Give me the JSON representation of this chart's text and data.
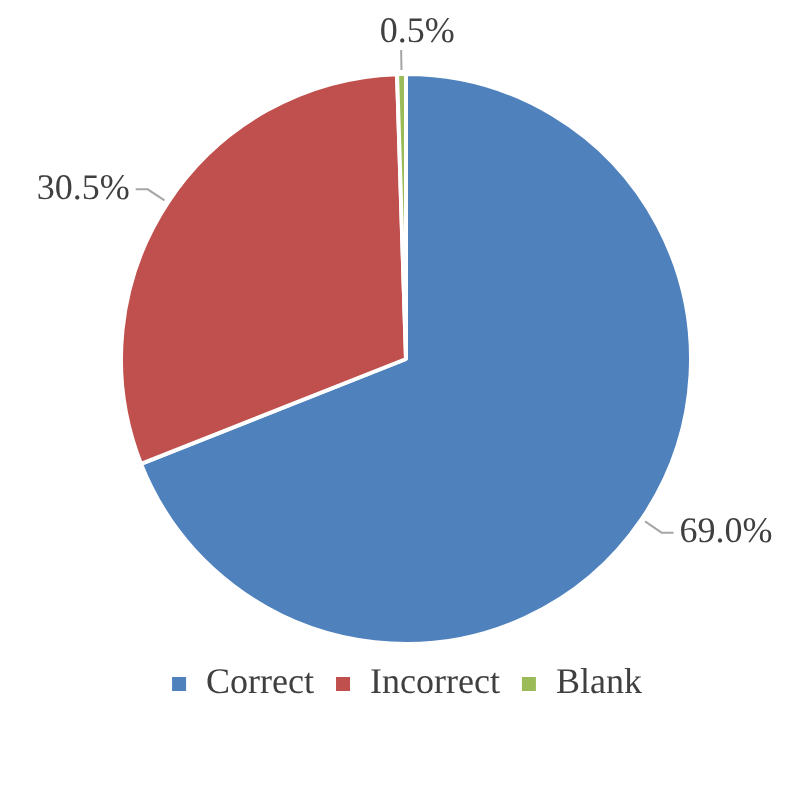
{
  "chart_data": {
    "type": "pie",
    "categories": [
      "Correct",
      "Incorrect",
      "Blank"
    ],
    "values": [
      69.0,
      30.5,
      0.5
    ],
    "colors": [
      "#4f81bd",
      "#c0504d",
      "#9bbb59"
    ],
    "value_labels": [
      "69.0%",
      "30.5%",
      "0.5%"
    ],
    "legend": "bottom"
  }
}
